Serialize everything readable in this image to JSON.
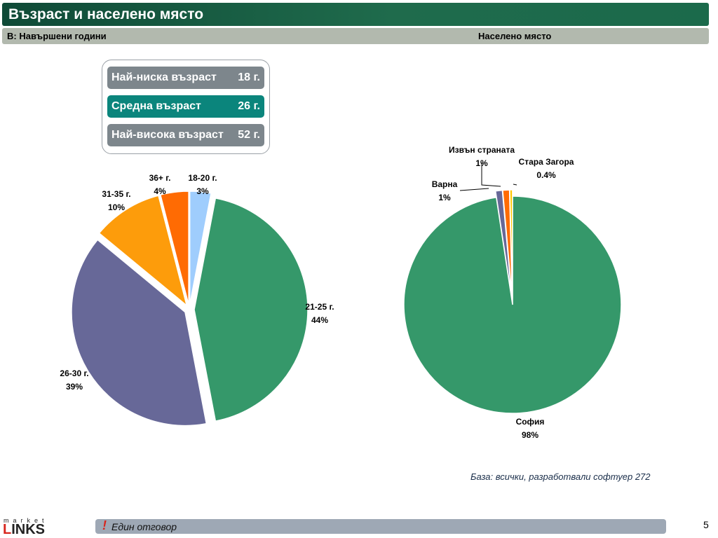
{
  "header": {
    "title": "Възраст и населено място",
    "question": "В: Навършени години",
    "right_label": "Населено място"
  },
  "stats": [
    {
      "label": "Най-ниска възраст",
      "value": "18 г.",
      "style": "gray"
    },
    {
      "label": "Средна възраст",
      "value": "26 г.",
      "style": "teal"
    },
    {
      "label": "Най-висока възраст",
      "value": "52 г.",
      "style": "gray"
    }
  ],
  "colors": {
    "title_bar": "#1b6a4b",
    "subtitle_bar": "#b2b9ae",
    "green": "#35986a",
    "purple": "#676898",
    "orange": "#fd9c0b",
    "dark_orange": "#ff6b03",
    "light_blue": "#9fcdfd",
    "yellow": "#ffc700",
    "teal_row": "#0b857c",
    "gray_row": "#7d868c"
  },
  "chart_data": [
    {
      "type": "pie",
      "title": "",
      "slices": [
        {
          "label": "18-20 г.",
          "value": 3,
          "display": "3%",
          "color": "#9fcdfd"
        },
        {
          "label": "21-25 г.",
          "value": 44,
          "display": "44%",
          "color": "#35986a"
        },
        {
          "label": "26-30 г.",
          "value": 39,
          "display": "39%",
          "color": "#676898"
        },
        {
          "label": "31-35 г.",
          "value": 10,
          "display": "10%",
          "color": "#fd9c0b"
        },
        {
          "label": "36+ г.",
          "value": 4,
          "display": "4%",
          "color": "#ff6b03"
        }
      ],
      "exploded": true
    },
    {
      "type": "pie",
      "title": "",
      "slices": [
        {
          "label": "София",
          "value": 98,
          "display": "98%",
          "color": "#35986a"
        },
        {
          "label": "Варна",
          "value": 1,
          "display": "1%",
          "color": "#676898"
        },
        {
          "label": "Извън страната",
          "value": 1,
          "display": "1%",
          "color": "#ff6b03"
        },
        {
          "label": "Стара Загора",
          "value": 0.4,
          "display": "0.4%",
          "color": "#ffc700"
        }
      ],
      "exploded": true
    }
  ],
  "footer": {
    "base_note": "База: всички, разработвали софтуер 272",
    "excl": "!",
    "answer_type": "Един отговор",
    "page_number": "5",
    "logo_top": "market",
    "logo_bottom": "INKS"
  }
}
